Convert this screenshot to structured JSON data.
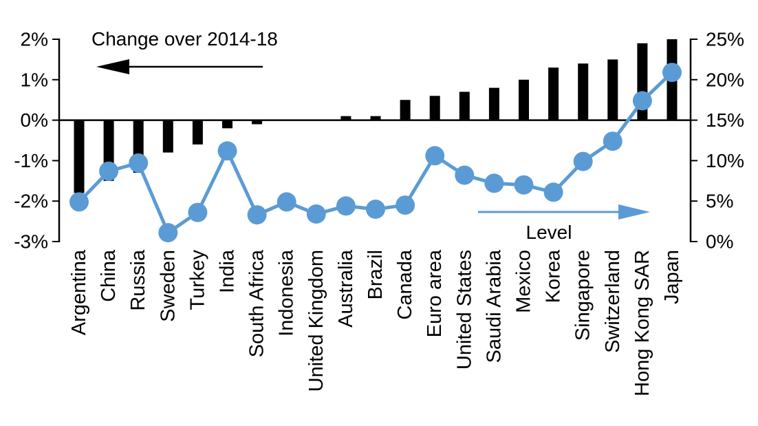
{
  "chart_data": {
    "type": "combo_bar_line",
    "title": "",
    "categories": [
      "Argentina",
      "China",
      "Russia",
      "Sweden",
      "Turkey",
      "India",
      "South Africa",
      "Indonesia",
      "United Kingdom",
      "Australia",
      "Brazil",
      "Canada",
      "Euro area",
      "United States",
      "Saudi Arabia",
      "Mexico",
      "Korea",
      "Singapore",
      "Switzerland",
      "Hong Kong SAR",
      "Japan"
    ],
    "series": [
      {
        "name": "Change over 2014-18",
        "type": "bar",
        "axis": "left",
        "color": "#000000",
        "values": [
          -1.8,
          -1.5,
          -1.3,
          -0.8,
          -0.6,
          -0.2,
          -0.1,
          0,
          0,
          0.1,
          0.1,
          0.5,
          0.6,
          0.7,
          0.8,
          1.0,
          1.3,
          1.4,
          1.5,
          1.9,
          2.0
        ]
      },
      {
        "name": "Level",
        "type": "line",
        "axis": "right",
        "color": "#5B9BD5",
        "values": [
          4.9,
          8.7,
          9.7,
          1.1,
          3.6,
          11.2,
          3.3,
          4.9,
          3.4,
          4.4,
          4.0,
          4.5,
          10.6,
          8.2,
          7.2,
          7.0,
          6.1,
          9.9,
          12.4,
          17.4,
          20.9
        ]
      }
    ],
    "left_axis": {
      "min": -3,
      "max": 2,
      "tick_values": [
        2,
        1,
        0,
        -1,
        -2,
        -3
      ],
      "tick_labels": [
        "2%",
        "1%",
        "0%",
        "-1%",
        "-2%",
        "-3%"
      ]
    },
    "right_axis": {
      "min": 0,
      "max": 25,
      "tick_values": [
        25,
        20,
        15,
        10,
        5,
        0
      ],
      "tick_labels": [
        "25%",
        "20%",
        "15%",
        "10%",
        "5%",
        "0%"
      ]
    },
    "annotations": {
      "bar_series_label": "Change over 2014-18",
      "bar_series_arrow_direction": "left",
      "line_series_label": "Level",
      "line_series_arrow_direction": "right"
    },
    "grid": false,
    "legend_position": "in-plot annotations with arrows"
  },
  "colors": {
    "bar": "#000000",
    "line": "#5B9BD5",
    "text": "#000000",
    "background": "#FFFFFF"
  }
}
